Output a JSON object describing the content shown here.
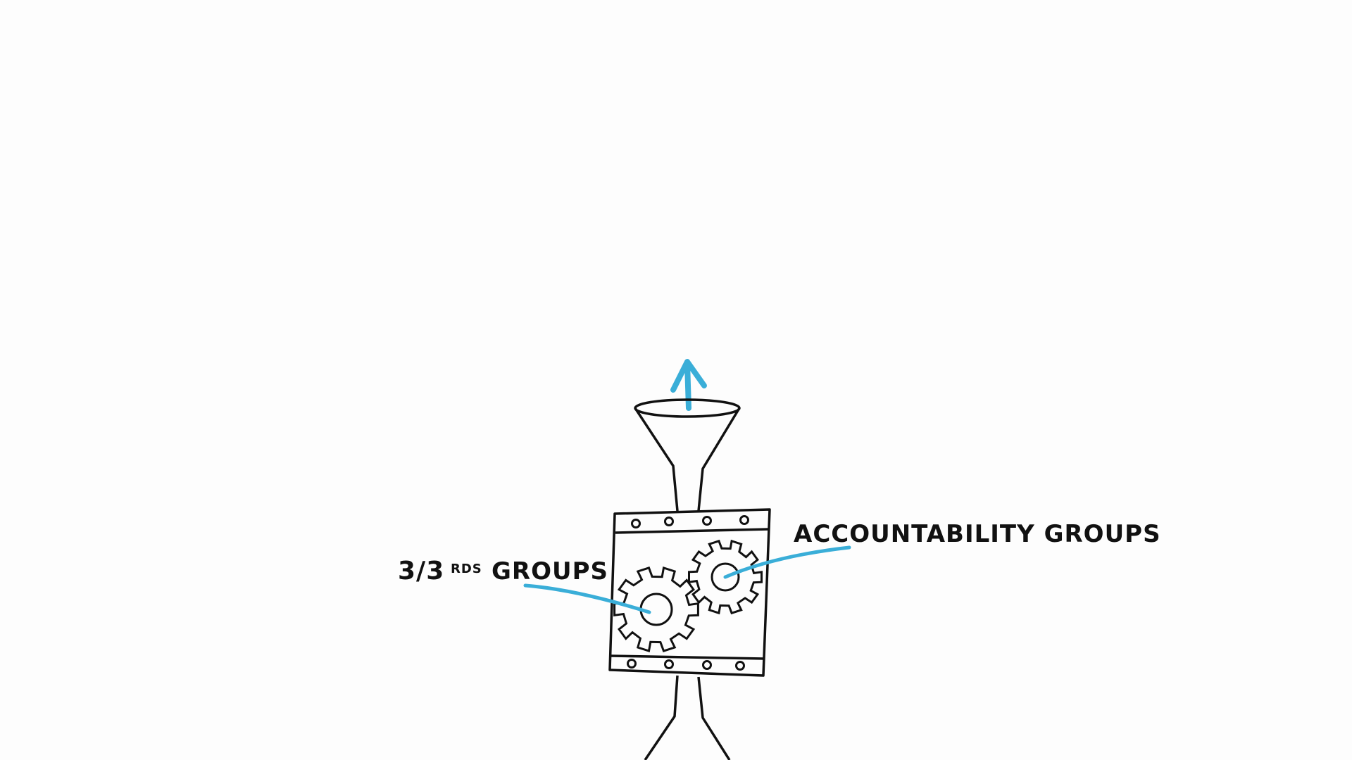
{
  "labels": {
    "left_main": "3/3",
    "left_superscript": "RDS",
    "left_suffix": "GROUPS",
    "right": "ACCOUNTABILITY GROUPS"
  },
  "colors": {
    "background": "#fdfdfd",
    "ink": "#111111",
    "accent": "#3aaed8"
  },
  "icons": {
    "arrow": "up-arrow-icon",
    "funnel": "funnel-icon",
    "gear_large": "gear-icon",
    "gear_small": "gear-icon"
  }
}
